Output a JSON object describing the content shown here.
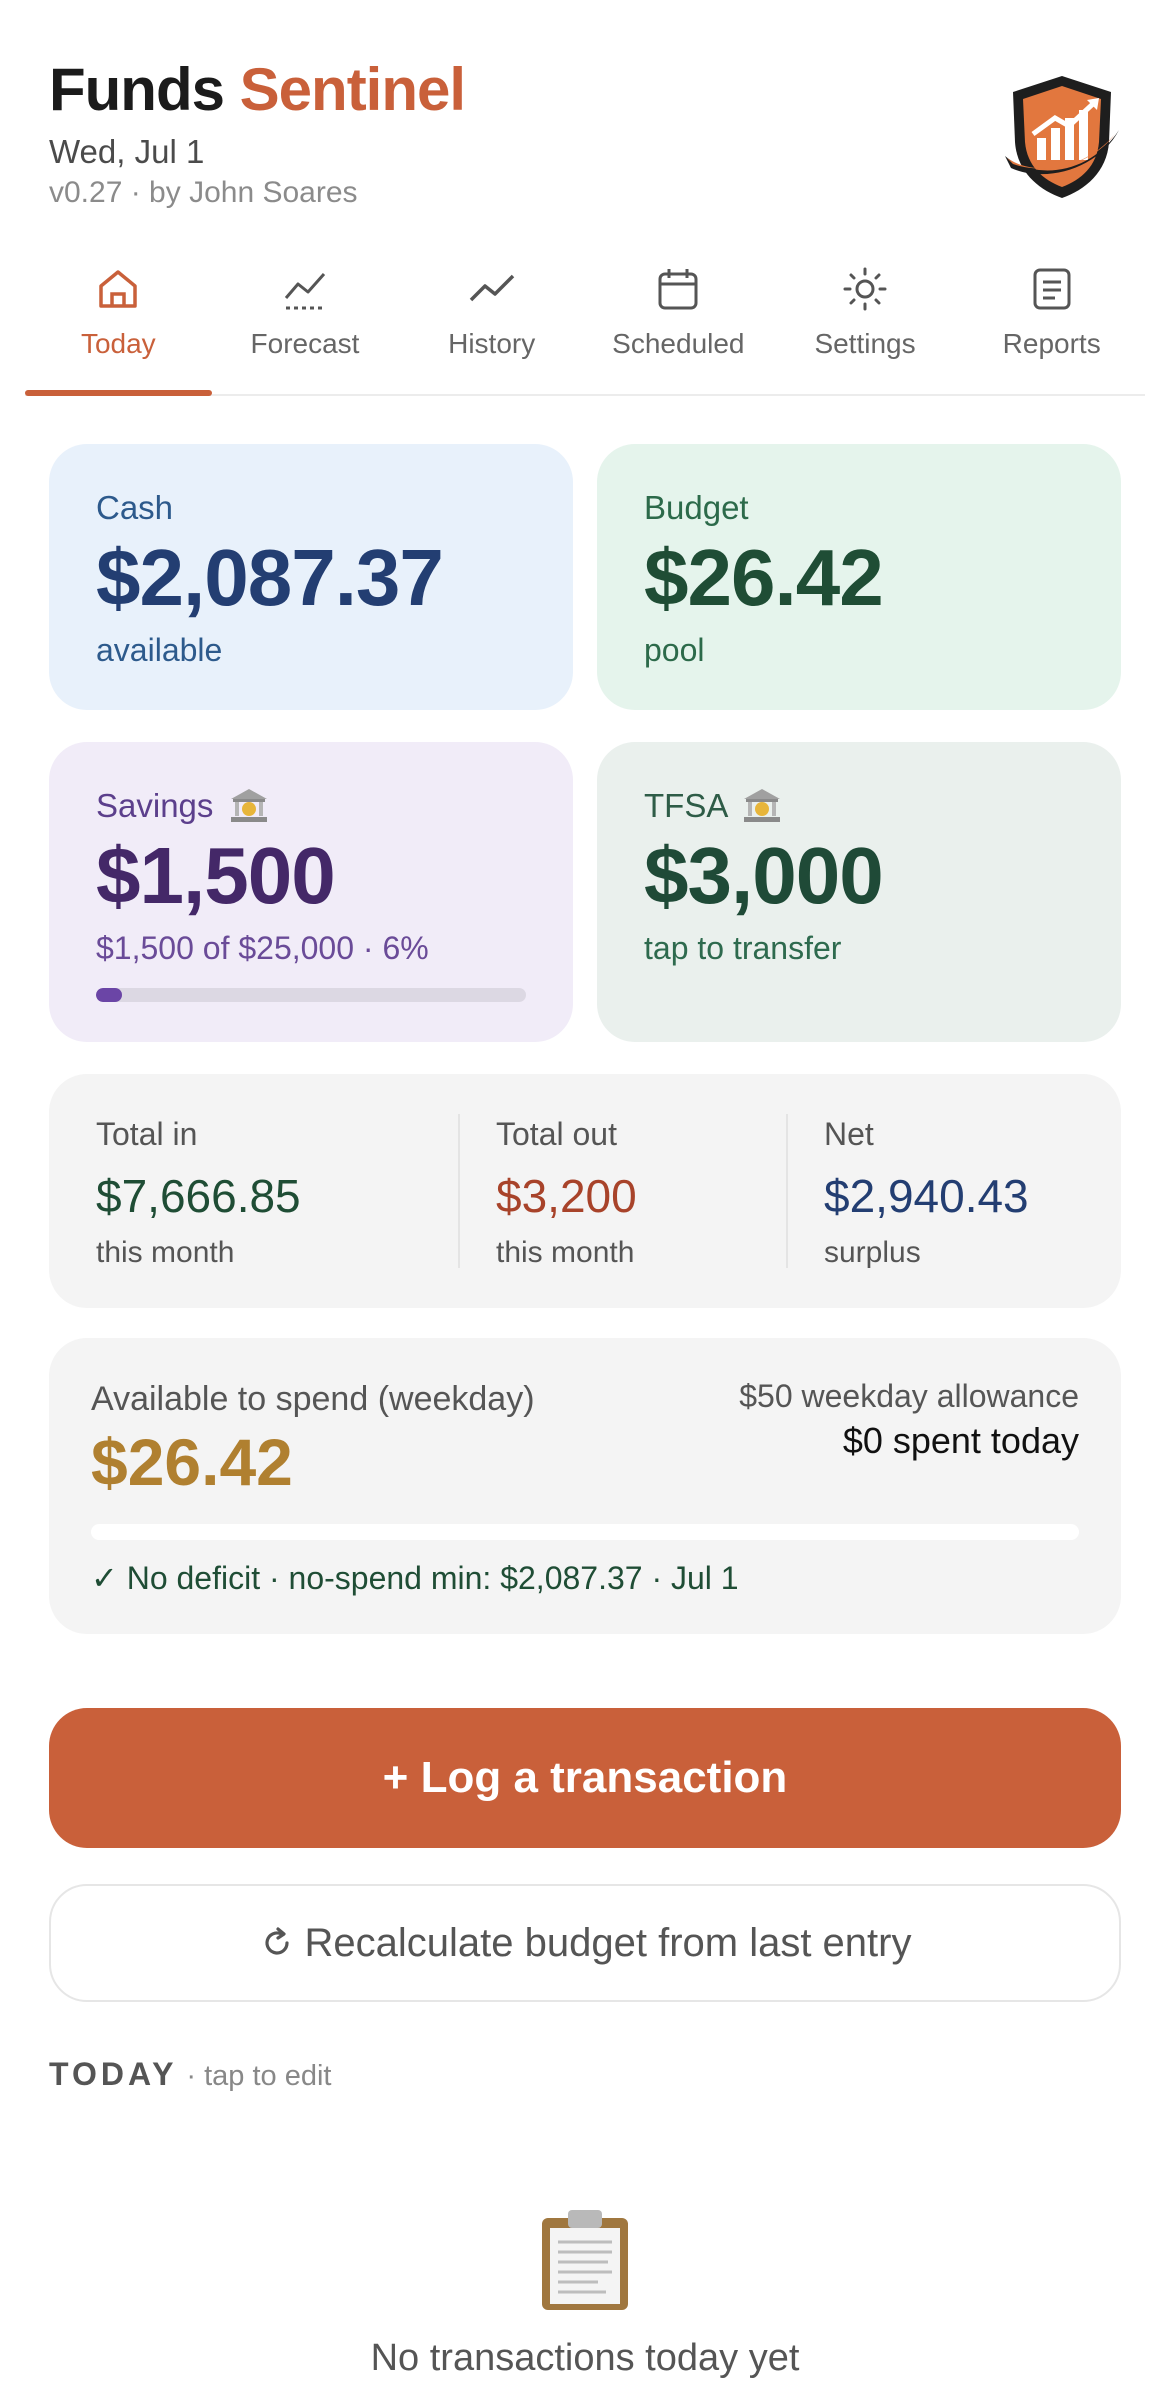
{
  "header": {
    "title_part1": "Funds",
    "title_part2": "Sentinel",
    "date": "Wed, Jul 1",
    "version": "v0.27 · by John Soares"
  },
  "tabs": [
    {
      "label": "Today",
      "icon": "home-icon",
      "active": true
    },
    {
      "label": "Forecast",
      "icon": "forecast-chart-icon",
      "active": false
    },
    {
      "label": "History",
      "icon": "trend-line-icon",
      "active": false
    },
    {
      "label": "Scheduled",
      "icon": "calendar-icon",
      "active": false
    },
    {
      "label": "Settings",
      "icon": "sun-gear-icon",
      "active": false
    },
    {
      "label": "Reports",
      "icon": "document-icon",
      "active": false
    }
  ],
  "cards": {
    "cash": {
      "label": "Cash",
      "value": "$2,087.37",
      "sub": "available"
    },
    "budget": {
      "label": "Budget",
      "value": "$26.42",
      "sub": "pool"
    },
    "savings": {
      "label": "Savings",
      "value": "$1,500",
      "sub": "$1,500 of $25,000 · 6%",
      "progress_percent": 6
    },
    "tfsa": {
      "label": "TFSA",
      "value": "$3,000",
      "sub": "tap to transfer"
    }
  },
  "totals": {
    "in": {
      "label": "Total in",
      "value": "$7,666.85",
      "sub": "this month"
    },
    "out": {
      "label": "Total out",
      "value": "$3,200",
      "sub": "this month"
    },
    "net": {
      "label": "Net",
      "value": "$2,940.43",
      "sub": "surplus"
    }
  },
  "available": {
    "label": "Available to spend (weekday)",
    "value": "$26.42",
    "allowance": "$50 weekday allowance",
    "spent": "$0 spent today",
    "status": "✓ No deficit · no-spend min: $2,087.37 · Jul 1",
    "spent_fraction": 0
  },
  "actions": {
    "log_label": "+ Log a transaction",
    "recalc_label": "Recalculate budget from last entry"
  },
  "today": {
    "heading": "TODAY",
    "hint": "· tap to edit",
    "empty_text": "No transactions today yet"
  },
  "colors": {
    "accent": "#c9603a",
    "cash_bg": "#e8f1fb",
    "budget_bg": "#e5f4ec",
    "savings_bg": "#f1ecf8",
    "tfsa_bg": "#eaf0ed",
    "income_green": "#1f4d35",
    "expense_red": "#a8432a",
    "net_blue": "#233e72",
    "avail_gold": "#b08030"
  }
}
